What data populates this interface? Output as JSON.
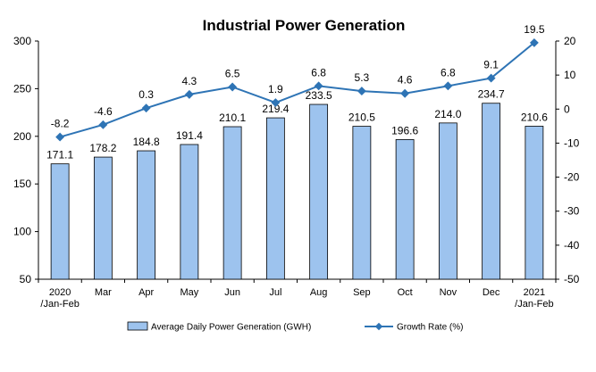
{
  "chart_data": {
    "type": "bar",
    "title": "Industrial Power Generation",
    "categories": [
      [
        "2020",
        "/Jan-Feb"
      ],
      [
        "Mar"
      ],
      [
        "Apr"
      ],
      [
        "May"
      ],
      [
        "Jun"
      ],
      [
        "Jul"
      ],
      [
        "Aug"
      ],
      [
        "Sep"
      ],
      [
        "Oct"
      ],
      [
        "Nov"
      ],
      [
        "Dec"
      ],
      [
        "2021",
        "/Jan-Feb"
      ]
    ],
    "series": [
      {
        "name": "Average Daily Power Generation (GWH)",
        "type": "bar",
        "axis": "left",
        "values": [
          171.1,
          178.2,
          184.8,
          191.4,
          210.1,
          219.4,
          233.5,
          210.5,
          196.6,
          214.0,
          234.7,
          210.6
        ],
        "labels": [
          "171.1",
          "178.2",
          "184.8",
          "191.4",
          "210.1",
          "219.4",
          "233.5",
          "210.5",
          "196.6",
          "214.0",
          "234.7",
          "210.6"
        ],
        "color": "#9dc3ee"
      },
      {
        "name": "Growth Rate (%)",
        "type": "line",
        "axis": "right",
        "values": [
          -8.2,
          -4.6,
          0.3,
          4.3,
          6.5,
          1.9,
          6.8,
          5.3,
          4.6,
          6.8,
          9.1,
          19.5
        ],
        "labels": [
          "-8.2",
          "-4.6",
          "0.3",
          "4.3",
          "6.5",
          "1.9",
          "6.8",
          "5.3",
          "4.6",
          "6.8",
          "9.1",
          "19.5"
        ],
        "color": "#2e74b5"
      }
    ],
    "y_left": {
      "min": 50,
      "max": 300,
      "ticks": [
        50,
        100,
        150,
        200,
        250,
        300
      ]
    },
    "y_right": {
      "min": -50,
      "max": 20,
      "ticks": [
        -50,
        -40,
        -30,
        -20,
        -10,
        0,
        10,
        20
      ]
    },
    "grid": false,
    "legend_position": "bottom"
  }
}
